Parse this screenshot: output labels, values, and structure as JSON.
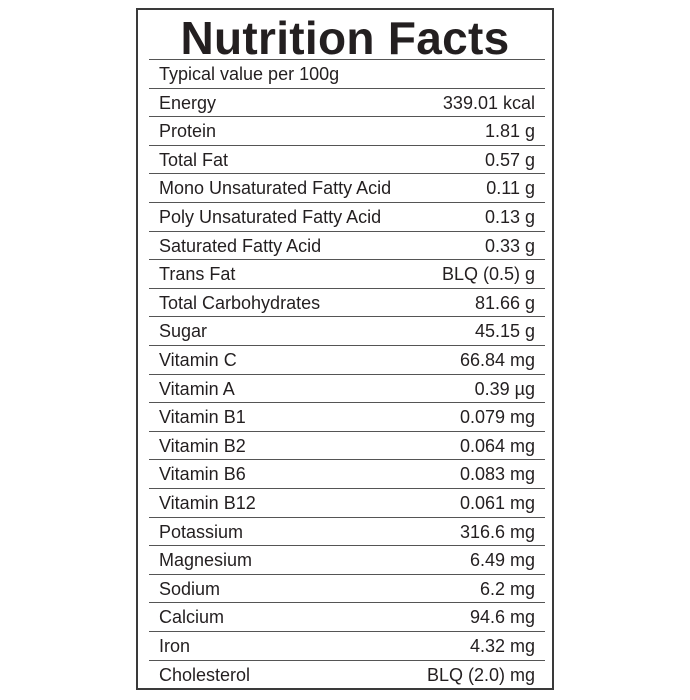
{
  "header": {
    "title": "Nutrition Facts",
    "subtitle": "Typical value per 100g"
  },
  "table": {
    "rows": [
      [
        "Energy",
        "339.01 kcal"
      ],
      [
        "Protein",
        "1.81 g"
      ],
      [
        "Total Fat",
        "0.57 g"
      ],
      [
        "Mono Unsaturated Fatty Acid",
        "0.11 g"
      ],
      [
        "Poly Unsaturated Fatty Acid",
        "0.13 g"
      ],
      [
        "Saturated Fatty Acid",
        "0.33 g"
      ],
      [
        "Trans Fat",
        "BLQ (0.5) g"
      ],
      [
        "Total Carbohydrates",
        "81.66 g"
      ],
      [
        "Sugar",
        "45.15 g"
      ],
      [
        "Vitamin C",
        "66.84 mg"
      ],
      [
        "Vitamin A",
        "0.39 µg"
      ],
      [
        "Vitamin B1",
        "0.079 mg"
      ],
      [
        "Vitamin B2",
        "0.064 mg"
      ],
      [
        "Vitamin B6",
        "0.083 mg"
      ],
      [
        "Vitamin B12",
        "0.061 mg"
      ],
      [
        "Potassium",
        "316.6 mg"
      ],
      [
        "Magnesium",
        "6.49 mg"
      ],
      [
        "Sodium",
        "6.2 mg"
      ],
      [
        "Calcium",
        "94.6 mg"
      ],
      [
        "Iron",
        "4.32 mg"
      ],
      [
        "Cholesterol",
        "BLQ (2.0) mg"
      ]
    ]
  }
}
